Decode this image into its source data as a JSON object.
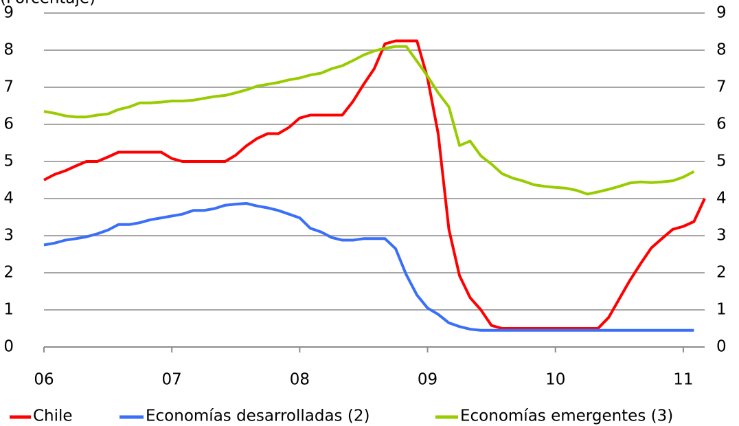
{
  "chart_data": {
    "type": "line",
    "subtitle": "(Porcentaje)",
    "x": [
      6,
      6.083,
      6.167,
      6.25,
      6.333,
      6.417,
      6.5,
      6.583,
      6.667,
      6.75,
      6.833,
      6.917,
      7,
      7.083,
      7.167,
      7.25,
      7.333,
      7.417,
      7.5,
      7.583,
      7.667,
      7.75,
      7.833,
      7.917,
      8,
      8.083,
      8.167,
      8.25,
      8.333,
      8.417,
      8.5,
      8.583,
      8.667,
      8.75,
      8.833,
      8.917,
      9,
      9.083,
      9.167,
      9.25,
      9.333,
      9.417,
      9.5,
      9.583,
      9.667,
      9.75,
      9.833,
      9.917,
      10,
      10.083,
      10.167,
      10.25,
      10.333,
      10.417,
      10.5,
      10.583,
      10.667,
      10.75,
      10.833,
      10.917,
      11,
      11.083,
      11.167
    ],
    "series": [
      {
        "name": "Chile",
        "color": "#ff0000",
        "values": [
          4.5,
          4.65,
          4.75,
          4.88,
          5.0,
          5.0,
          5.12,
          5.25,
          5.25,
          5.25,
          5.25,
          5.25,
          5.08,
          5.0,
          5.0,
          5.0,
          5.0,
          5.0,
          5.17,
          5.42,
          5.62,
          5.75,
          5.75,
          5.92,
          6.17,
          6.25,
          6.25,
          6.25,
          6.25,
          6.62,
          7.08,
          7.5,
          8.17,
          8.25,
          8.25,
          8.25,
          7.25,
          5.75,
          3.17,
          1.92,
          1.33,
          1.0,
          0.58,
          0.5,
          0.5,
          0.5,
          0.5,
          0.5,
          0.5,
          0.5,
          0.5,
          0.5,
          0.5,
          0.8,
          1.3,
          1.8,
          2.25,
          2.67,
          2.92,
          3.17,
          3.25,
          3.38,
          4.0
        ]
      },
      {
        "name": "Economías desarrolladas (2)",
        "color": "#3a6ff7",
        "values": [
          2.75,
          2.8,
          2.88,
          2.92,
          2.97,
          3.05,
          3.15,
          3.3,
          3.3,
          3.35,
          3.43,
          3.48,
          3.53,
          3.58,
          3.68,
          3.68,
          3.73,
          3.82,
          3.85,
          3.87,
          3.8,
          3.75,
          3.68,
          3.58,
          3.48,
          3.2,
          3.1,
          2.95,
          2.88,
          2.88,
          2.92,
          2.92,
          2.92,
          2.65,
          1.95,
          1.4,
          1.05,
          0.88,
          0.65,
          0.55,
          0.48,
          0.45,
          0.45,
          0.45,
          0.45,
          0.45,
          0.45,
          0.45,
          0.45,
          0.45,
          0.45,
          0.45,
          0.45,
          0.45,
          0.45,
          0.45,
          0.45,
          0.45,
          0.45,
          0.45,
          0.45,
          0.45,
          null
        ]
      },
      {
        "name": "Economías emergentes (3)",
        "color": "#99cc00",
        "values": [
          6.35,
          6.3,
          6.23,
          6.2,
          6.2,
          6.25,
          6.28,
          6.4,
          6.47,
          6.58,
          6.58,
          6.6,
          6.63,
          6.63,
          6.65,
          6.7,
          6.75,
          6.78,
          6.85,
          6.93,
          7.03,
          7.08,
          7.13,
          7.2,
          7.25,
          7.33,
          7.38,
          7.5,
          7.58,
          7.72,
          7.87,
          7.98,
          8.05,
          8.1,
          8.1,
          7.7,
          7.3,
          6.85,
          6.47,
          5.43,
          5.55,
          5.15,
          4.93,
          4.67,
          4.55,
          4.47,
          4.37,
          4.33,
          4.3,
          4.28,
          4.22,
          4.12,
          4.18,
          4.25,
          4.33,
          4.42,
          4.45,
          4.43,
          4.45,
          4.48,
          4.58,
          4.73,
          null
        ]
      }
    ],
    "xlim": [
      6,
      11.167
    ],
    "xticks": [
      {
        "value": 6,
        "label": "06"
      },
      {
        "value": 7,
        "label": "07"
      },
      {
        "value": 8,
        "label": "08"
      },
      {
        "value": 9,
        "label": "09"
      },
      {
        "value": 10,
        "label": "10"
      },
      {
        "value": 11,
        "label": "11"
      }
    ],
    "ylim": [
      0,
      9
    ],
    "yticks": [
      0,
      1,
      2,
      3,
      4,
      5,
      6,
      7,
      8,
      9
    ],
    "y2lim": [
      0,
      9
    ],
    "y2ticks": [
      0,
      1,
      2,
      3,
      4,
      5,
      6,
      7,
      8,
      9
    ],
    "grid": true,
    "legend": "bottom"
  }
}
